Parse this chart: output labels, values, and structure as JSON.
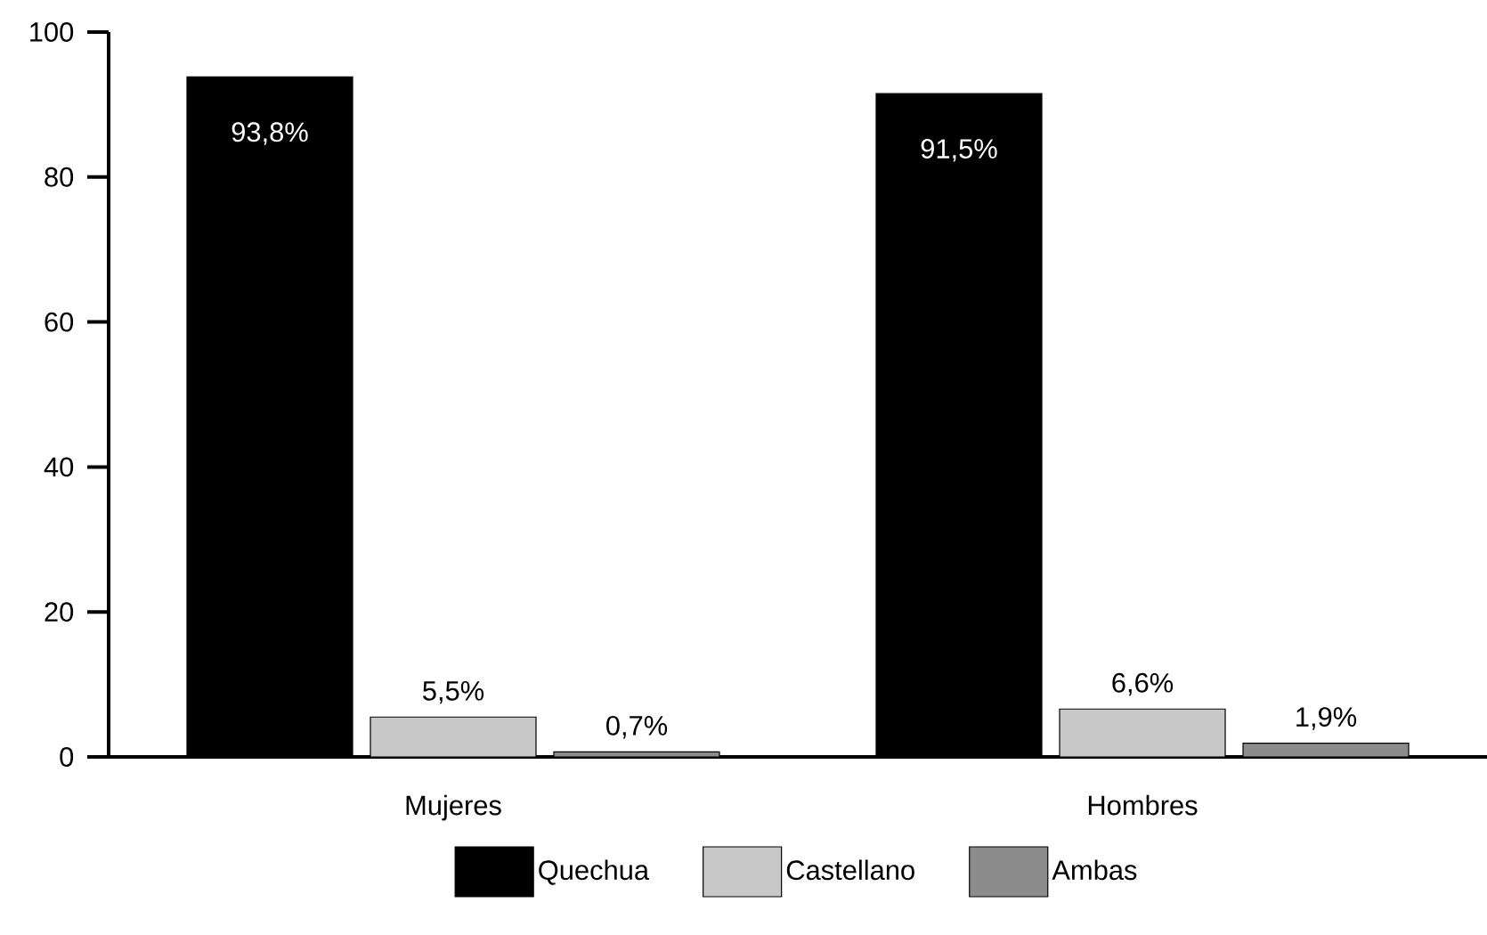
{
  "chart_data": {
    "type": "bar",
    "categories": [
      "Mujeres",
      "Hombres"
    ],
    "series": [
      {
        "name": "Quechua",
        "color": "#000000",
        "values": [
          93.8,
          91.5
        ],
        "value_labels": [
          "93,8%",
          "91,5%"
        ]
      },
      {
        "name": "Castellano",
        "color": "#c8c8c8",
        "values": [
          5.5,
          6.6
        ],
        "value_labels": [
          "5,5%",
          "6,6%"
        ]
      },
      {
        "name": "Ambas",
        "color": "#8c8c8c",
        "values": [
          0.7,
          1.9
        ],
        "value_labels": [
          "0,7%",
          "1,9%"
        ]
      }
    ],
    "ylim": [
      0,
      100
    ],
    "yticks": [
      0,
      20,
      40,
      60,
      80,
      100
    ],
    "grid": false,
    "legend": "bottom"
  }
}
